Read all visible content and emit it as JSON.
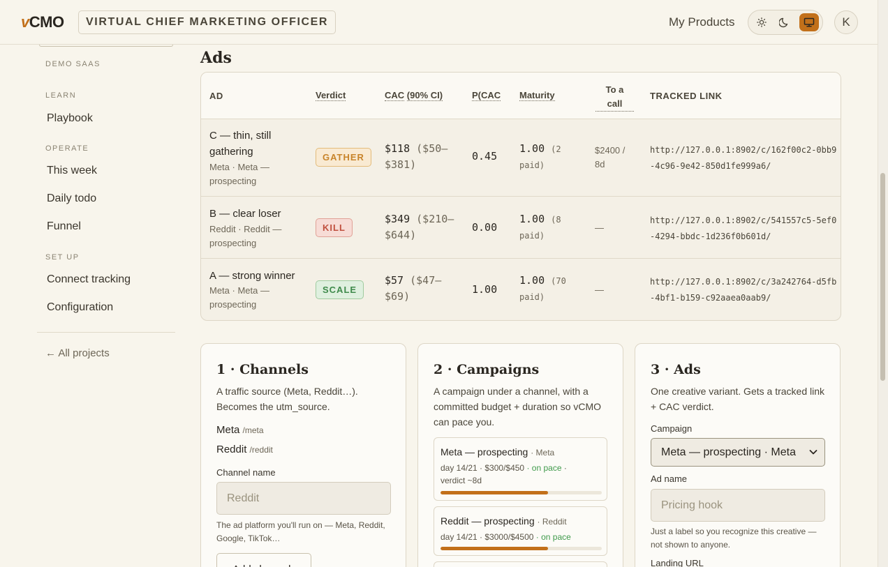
{
  "header": {
    "brand_v": "v",
    "brand_rest": "CMO",
    "tagline": "VIRTUAL CHIEF MARKETING OFFICER",
    "my_products": "My Products",
    "avatar_initial": "K"
  },
  "sidebar": {
    "project": "DEMO SAAS",
    "sections": {
      "learn": "LEARN",
      "operate": "OPERATE",
      "setup": "SET UP"
    },
    "items": {
      "playbook": "Playbook",
      "this_week": "This week",
      "daily_todo": "Daily todo",
      "funnel": "Funnel",
      "connect_tracking": "Connect tracking",
      "configuration": "Configuration"
    },
    "back": "← All projects"
  },
  "ads": {
    "title": "Ads",
    "columns": {
      "ad": "AD",
      "verdict": "Verdict",
      "cac_a": "CAC",
      "cac_b": "(90% CI)",
      "pcac": "P(CAC",
      "maturity": "Maturity",
      "to_a": "To a",
      "to_b": "call",
      "link": "TRACKED LINK"
    },
    "rows": [
      {
        "name_1": "C — thin, still",
        "name_2": "gathering",
        "sub_1": "Meta · Meta —",
        "sub_2": "prospecting",
        "verdict": "GATHER",
        "cac": "$118",
        "ci_1": "($50–",
        "ci_2": "$381)",
        "pcac": "0.45",
        "maturity": "1.00",
        "paid_1": "(2",
        "paid_2": "paid)",
        "to_call_1": "$2400 /",
        "to_call_2": "8d",
        "link": "http://127.0.0.1:8902/c/162f00c2-0bb9-4c96-9e42-850d1fe999a6/"
      },
      {
        "name_1": "B — clear loser",
        "sub_1": "Reddit · Reddit —",
        "sub_2": "prospecting",
        "verdict": "KILL",
        "cac": "$349",
        "ci_1": "($210–",
        "ci_2": "$644)",
        "pcac": "0.00",
        "maturity": "1.00",
        "paid_1": "(8",
        "paid_2": "paid)",
        "to_call_1": "—",
        "link": "http://127.0.0.1:8902/c/541557c5-5ef0-4294-bbdc-1d236f0b601d/"
      },
      {
        "name_1": "A — strong winner",
        "sub_1": "Meta · Meta —",
        "sub_2": "prospecting",
        "verdict": "SCALE",
        "cac": "$57",
        "ci_1": "($47–",
        "ci_2": "$69)",
        "pcac": "1.00",
        "maturity": "1.00",
        "paid_1": "(70",
        "paid_2": "paid)",
        "to_call_1": "—",
        "link": "http://127.0.0.1:8902/c/3a242764-d5fb-4bf1-b159-c92aaea0aab9/"
      }
    ]
  },
  "channels_card": {
    "title": "1 · Channels",
    "desc": "A traffic source (Meta, Reddit…). Becomes the utm_source.",
    "channels": [
      {
        "name": "Meta",
        "slug": "/meta"
      },
      {
        "name": "Reddit",
        "slug": "/reddit"
      }
    ],
    "field_label": "Channel name",
    "placeholder": "Reddit",
    "hint": "The ad platform you'll run on — Meta, Reddit, Google, TikTok…",
    "add_button": "Add channel"
  },
  "campaigns_card": {
    "title": "2 · Campaigns",
    "desc": "A campaign under a channel, with a committed budget + duration so vCMO can pace you.",
    "campaigns": [
      {
        "name": "Meta — prospecting",
        "channel": "· Meta",
        "meta": "day 14/21 · $300/$450",
        "status": "· on pace",
        "tail_1": "·",
        "tail_2": "verdict ~8d",
        "progress": 0.667
      },
      {
        "name": "Reddit — prospecting",
        "channel": "· Reddit",
        "meta": "day 14/21 · $3000/$4500",
        "status": "· on pace",
        "progress": 0.667
      }
    ]
  },
  "ads_card": {
    "title": "3 · Ads",
    "desc": "One creative variant. Gets a tracked link + CAC verdict.",
    "campaign_label": "Campaign",
    "campaign_selected": "Meta — prospecting · Meta",
    "ad_name_label": "Ad name",
    "ad_name_placeholder": "Pricing hook",
    "hint": "Just a label so you recognize this creative — not shown to anyone.",
    "landing_label": "Landing URL"
  },
  "colors": {
    "accent": "#c2701a",
    "gather": "#c8842a",
    "kill": "#c0503f",
    "scale": "#3f8a4b",
    "on_pace": "#3f9a4b",
    "background": "#f8f5ec"
  }
}
